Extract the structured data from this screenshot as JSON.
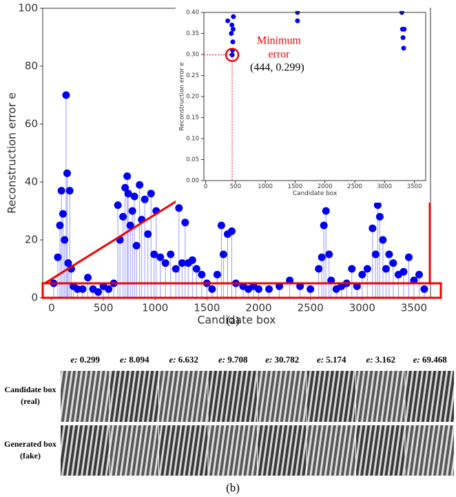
{
  "chart_data": [
    {
      "type": "scatter",
      "stems": true,
      "xlabel": "Candidate box",
      "ylabel": "Reconstruction error e",
      "color": "#0000ee",
      "xlim": [
        -86,
        3660
      ],
      "ylim": [
        0,
        100
      ],
      "xticks": [
        0,
        500,
        1000,
        1500,
        2000,
        2500,
        3000,
        3500
      ],
      "yticks": [
        0,
        20,
        40,
        60,
        80,
        100
      ],
      "x": [
        20,
        60,
        80,
        95,
        110,
        125,
        140,
        150,
        160,
        175,
        190,
        210,
        250,
        300,
        350,
        400,
        450,
        500,
        550,
        600,
        640,
        660,
        690,
        710,
        730,
        740,
        760,
        780,
        800,
        820,
        850,
        870,
        900,
        930,
        960,
        990,
        1010,
        1050,
        1100,
        1150,
        1200,
        1230,
        1260,
        1290,
        1320,
        1360,
        1400,
        1450,
        1500,
        1550,
        1600,
        1640,
        1660,
        1700,
        1740,
        1780,
        1850,
        1900,
        1950,
        2000,
        2100,
        2200,
        2300,
        2400,
        2500,
        2580,
        2610,
        2630,
        2650,
        2680,
        2700,
        2750,
        2800,
        2850,
        2900,
        2950,
        3000,
        3050,
        3100,
        3130,
        3150,
        3170,
        3200,
        3230,
        3260,
        3300,
        3350,
        3400,
        3450,
        3500,
        3550,
        3600
      ],
      "values": [
        5,
        14,
        25,
        37,
        29,
        20,
        70,
        43,
        12,
        37,
        10,
        4,
        3,
        3,
        7,
        3,
        2,
        4,
        3,
        5,
        32,
        20,
        28,
        38,
        42,
        36,
        25,
        30,
        35,
        18,
        39,
        27,
        34,
        22,
        36,
        15,
        30,
        14,
        12,
        15,
        10,
        31,
        12,
        26,
        12,
        13,
        10,
        8,
        5,
        3,
        8,
        25,
        15,
        22,
        23,
        5,
        4,
        3,
        4,
        3,
        3,
        4,
        6,
        4,
        3,
        10,
        14,
        25,
        30,
        15,
        6,
        3,
        4,
        5,
        10,
        4,
        8,
        10,
        24,
        15,
        32,
        28,
        20,
        10,
        15,
        12,
        8,
        9,
        14,
        6,
        8,
        3
      ]
    },
    {
      "type": "scatter",
      "stems": false,
      "xlabel": "Candidate box",
      "ylabel": "Reconstruction error e",
      "color": "#0000ee",
      "xlim": [
        -30,
        3690
      ],
      "ylim": [
        0,
        0.4
      ],
      "xticks": [
        0,
        500,
        1000,
        1500,
        2000,
        2500,
        3000,
        3500
      ],
      "yticks": [
        {
          "value": 0,
          "label": "0.00"
        },
        {
          "value": 0.05,
          "label": "0.05"
        },
        {
          "value": 0.1,
          "label": "0.10"
        },
        {
          "value": 0.15,
          "label": "0.15"
        },
        {
          "value": 0.2,
          "label": "0.20"
        },
        {
          "value": 0.25,
          "label": "0.25"
        },
        {
          "value": 0.3,
          "label": "0.30"
        },
        {
          "value": 0.35,
          "label": "0.35"
        },
        {
          "value": 0.4,
          "label": "0.40"
        }
      ],
      "x": [
        370,
        430,
        440,
        444,
        450,
        455,
        460,
        465,
        1540,
        1540,
        3290,
        3300,
        3310,
        3320,
        3330
      ],
      "values": [
        0.38,
        0.35,
        0.37,
        0.299,
        0.31,
        0.33,
        0.36,
        0.39,
        0.38,
        0.4,
        0.4,
        0.36,
        0.34,
        0.315,
        0.36
      ],
      "highlight": {
        "x": 444,
        "y": 0.299,
        "label": "(444, 0.299)",
        "note": [
          "Minimum",
          "error"
        ]
      }
    }
  ],
  "panel_a": {
    "caption": "(a)"
  },
  "panel_b": {
    "caption": "(b)",
    "error_prefix": "e:",
    "errors": [
      0.299,
      8.094,
      6.632,
      9.708,
      30.782,
      5.174,
      3.162,
      69.468
    ],
    "rows": [
      [
        "Candidate box",
        "(real)"
      ],
      [
        "Generated box",
        "(fake)"
      ]
    ]
  }
}
